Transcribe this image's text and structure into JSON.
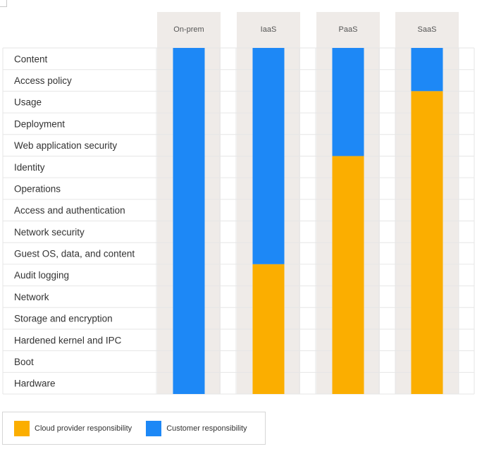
{
  "chart_data": {
    "type": "bar",
    "orientation": "vertical-stacked",
    "categories": [
      "On-prem",
      "IaaS",
      "PaaS",
      "SaaS"
    ],
    "layers": [
      "Content",
      "Access policy",
      "Usage",
      "Deployment",
      "Web application security",
      "Identity",
      "Operations",
      "Access and authentication",
      "Network security",
      "Guest OS, data, and content",
      "Audit logging",
      "Network",
      "Storage and encryption",
      "Hardened kernel and IPC",
      "Boot",
      "Hardware"
    ],
    "series": [
      {
        "name": "Cloud provider responsibility",
        "values": [
          0,
          6,
          11,
          14
        ]
      },
      {
        "name": "Customer responsibility",
        "values": [
          16,
          10,
          5,
          2
        ]
      }
    ],
    "colors": {
      "cloud": "#FBAE00",
      "customer": "#1D88F6",
      "column_bg": "#EFEBE8",
      "grid": "#E6E6E6"
    },
    "total_layers": 16,
    "legend_position": "bottom-left"
  }
}
